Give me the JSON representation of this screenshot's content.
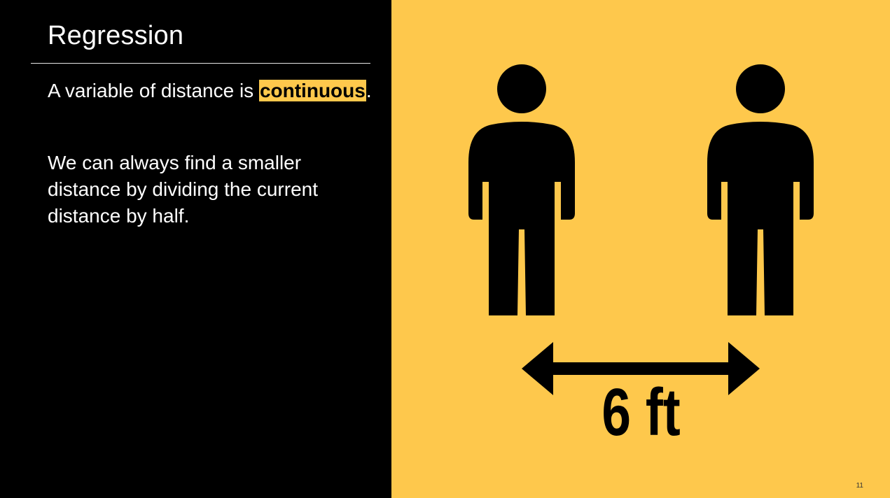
{
  "slide": {
    "title": "Regression",
    "paragraph_1": {
      "text_before": "A variable of distance is ",
      "highlighted": "continuous",
      "text_after": "."
    },
    "paragraph_2": "We can always find a smaller distance by dividing the current distance by half.",
    "illustration": {
      "distance_label": "6 ft",
      "left_figure_icon": "person-icon",
      "right_figure_icon": "person-icon",
      "arrow_icon": "double-arrow-icon"
    },
    "page_number": "11"
  },
  "colors": {
    "background": "#000000",
    "accent": "#fec84c",
    "text": "#ffffff",
    "ink": "#000000"
  }
}
